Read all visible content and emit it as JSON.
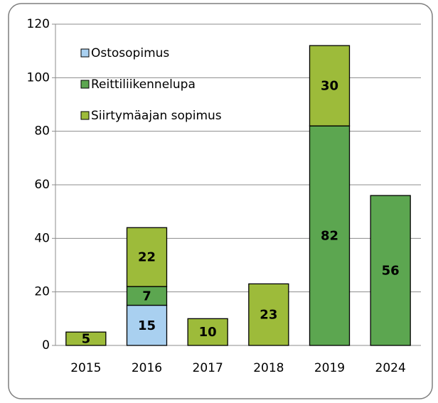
{
  "chart_data": {
    "type": "bar",
    "stacked": true,
    "categories": [
      "2015",
      "2016",
      "2017",
      "2018",
      "2019",
      "2024"
    ],
    "series": [
      {
        "name": "Ostosopimus",
        "color": "#a9d0f0",
        "values": [
          null,
          15,
          null,
          null,
          null,
          null
        ]
      },
      {
        "name": "Reittiliikennelupa",
        "color": "#5ca650",
        "values": [
          null,
          7,
          null,
          null,
          82,
          56
        ]
      },
      {
        "name": "Siirtymäajan sopimus",
        "color": "#9dbb3a",
        "values": [
          5,
          22,
          10,
          23,
          30,
          null
        ]
      }
    ],
    "ylim": [
      0,
      120
    ],
    "yticks": [
      0,
      20,
      40,
      60,
      80,
      100,
      120
    ],
    "grid": true,
    "legend": "upper left"
  }
}
